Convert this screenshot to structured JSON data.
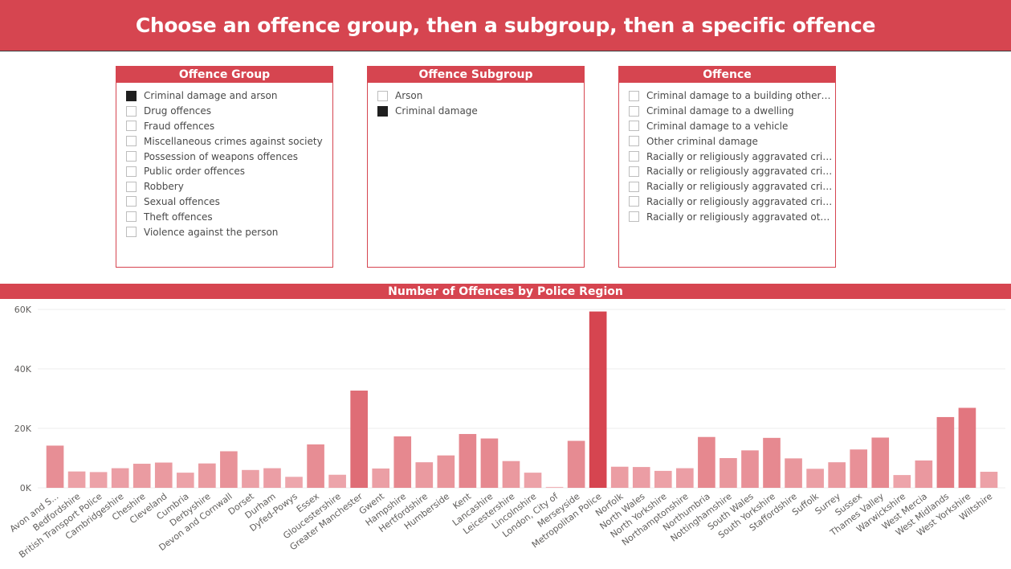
{
  "header": {
    "title": "Choose an offence group, then a subgroup, then a specific offence"
  },
  "slicers": {
    "group": {
      "title": "Offence Group",
      "items": [
        {
          "label": "Criminal damage and arson",
          "checked": true
        },
        {
          "label": "Drug offences",
          "checked": false
        },
        {
          "label": "Fraud offences",
          "checked": false
        },
        {
          "label": "Miscellaneous crimes against society",
          "checked": false
        },
        {
          "label": "Possession of weapons offences",
          "checked": false
        },
        {
          "label": "Public order offences",
          "checked": false
        },
        {
          "label": "Robbery",
          "checked": false
        },
        {
          "label": "Sexual offences",
          "checked": false
        },
        {
          "label": "Theft offences",
          "checked": false
        },
        {
          "label": "Violence against the person",
          "checked": false
        }
      ]
    },
    "subgroup": {
      "title": "Offence Subgroup",
      "items": [
        {
          "label": "Arson",
          "checked": false
        },
        {
          "label": "Criminal damage",
          "checked": true
        }
      ]
    },
    "offence": {
      "title": "Offence",
      "items": [
        {
          "label": "Criminal damage to a building other t...",
          "checked": false
        },
        {
          "label": "Criminal damage to a dwelling",
          "checked": false
        },
        {
          "label": "Criminal damage to a vehicle",
          "checked": false
        },
        {
          "label": "Other criminal damage",
          "checked": false
        },
        {
          "label": "Racially or religiously aggravated crim...",
          "checked": false
        },
        {
          "label": "Racially or religiously aggravated crim...",
          "checked": false
        },
        {
          "label": "Racially or religiously aggravated crim...",
          "checked": false
        },
        {
          "label": "Racially or religiously aggravated crim...",
          "checked": false
        },
        {
          "label": "Racially or religiously aggravated othe...",
          "checked": false
        }
      ]
    }
  },
  "chart_data": {
    "type": "bar",
    "title": "Number of Offences by Police Region",
    "y_ticks": [
      "0K",
      "20K",
      "40K",
      "60K"
    ],
    "ylim": [
      0,
      60000
    ],
    "grid": true,
    "categories": [
      "Avon and S...",
      "Bedfordshire",
      "British Transport Police",
      "Cambridgeshire",
      "Cheshire",
      "Cleveland",
      "Cumbria",
      "Derbyshire",
      "Devon and Cornwall",
      "Dorset",
      "Durham",
      "Dyfed-Powys",
      "Essex",
      "Gloucestershire",
      "Greater Manchester",
      "Gwent",
      "Hampshire",
      "Hertfordshire",
      "Humberside",
      "Kent",
      "Lancashire",
      "Leicestershire",
      "Lincolnshire",
      "London, City of",
      "Merseyside",
      "Metropolitan Police",
      "Norfolk",
      "North Wales",
      "North Yorkshire",
      "Northamptonshire",
      "Northumbria",
      "Nottinghamshire",
      "South Wales",
      "South Yorkshire",
      "Staffordshire",
      "Suffolk",
      "Surrey",
      "Sussex",
      "Thames Valley",
      "Warwickshire",
      "West Mercia",
      "West Midlands",
      "West Yorkshire",
      "Wiltshire"
    ],
    "values": [
      14200,
      5500,
      5300,
      6600,
      8100,
      8500,
      5100,
      8200,
      12300,
      6000,
      6600,
      3700,
      14600,
      4400,
      32700,
      6500,
      17300,
      8600,
      10900,
      18100,
      16600,
      9000,
      5100,
      300,
      15800,
      59300,
      7100,
      7000,
      5700,
      6600,
      17100,
      10000,
      12600,
      16800,
      9900,
      6400,
      8600,
      12900,
      16900,
      4300,
      9200,
      23800,
      26900,
      5400
    ],
    "colors": {
      "min": "#f0b3b8",
      "max": "#d64550",
      "brand": "#d64550"
    }
  }
}
